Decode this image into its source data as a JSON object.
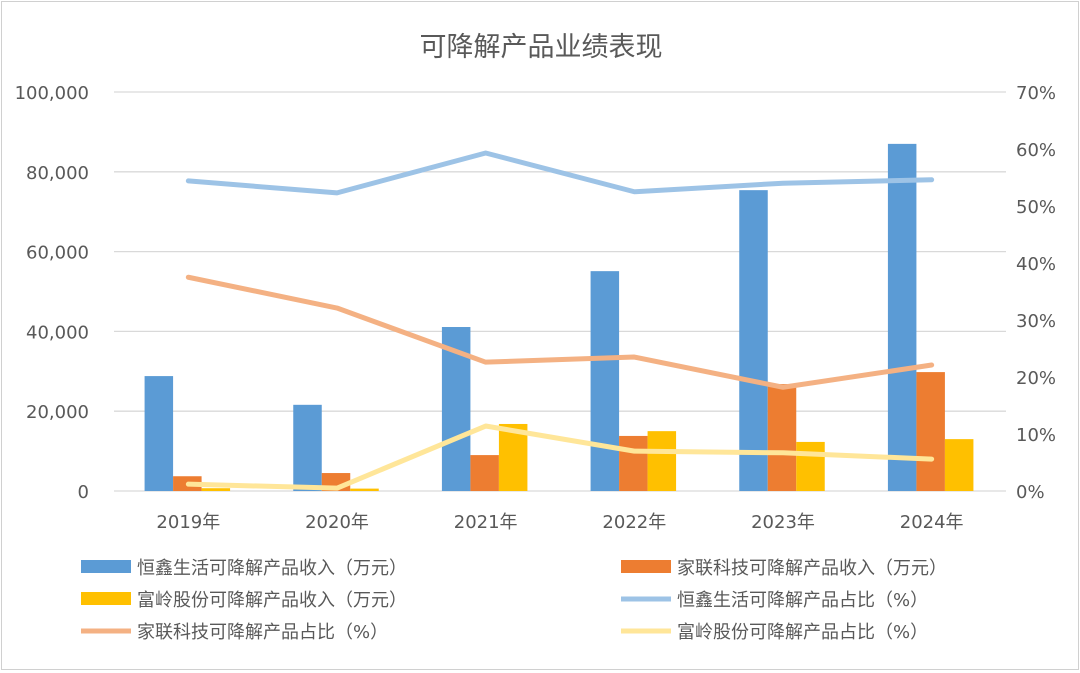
{
  "chart_data": {
    "type": "bar+line",
    "title": "可降解产品业绩表现",
    "categories": [
      "2019年",
      "2020年",
      "2021年",
      "2022年",
      "2023年",
      "2024年"
    ],
    "left_axis": {
      "range": [
        0,
        100000
      ],
      "ticks": [
        "0",
        "20,000",
        "40,000",
        "60,000",
        "80,000",
        "100,000"
      ]
    },
    "right_axis": {
      "range": [
        0,
        70
      ],
      "ticks": [
        "0%",
        "10%",
        "20%",
        "30%",
        "40%",
        "50%",
        "60%",
        "70%"
      ]
    },
    "grid": true,
    "legend_position": "bottom",
    "bar_series": [
      {
        "name": "恒鑫生活可降解产品收入（万元）",
        "color": "#5b9bd5",
        "values": [
          28800,
          21600,
          41100,
          55100,
          75400,
          87000
        ]
      },
      {
        "name": "家联科技可降解产品收入（万元）",
        "color": "#ed7d31",
        "values": [
          3700,
          4500,
          9000,
          13800,
          26800,
          29800
        ]
      },
      {
        "name": "富岭股份可降解产品收入（万元）",
        "color": "#ffc000",
        "values": [
          700,
          600,
          16800,
          15000,
          12300,
          13000
        ]
      }
    ],
    "line_series": [
      {
        "name": "恒鑫生活可降解产品占比（%）",
        "color": "#9dc3e6",
        "values": [
          54.4,
          52.3,
          59.3,
          52.5,
          54.0,
          54.6
        ]
      },
      {
        "name": "家联科技可降解产品占比（%）",
        "color": "#f4b183",
        "values": [
          37.5,
          32.1,
          22.6,
          23.5,
          18.2,
          22.1
        ]
      },
      {
        "name": "富岭股份可降解产品占比（%）",
        "color": "#ffe699",
        "values": [
          1.2,
          0.5,
          11.4,
          7.0,
          6.7,
          5.6
        ]
      }
    ]
  }
}
